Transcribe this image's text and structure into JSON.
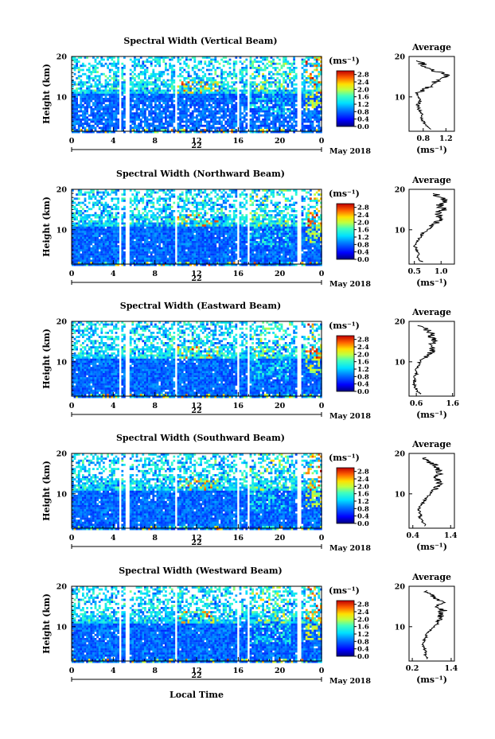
{
  "chart_data": [
    {
      "type": "heatmap",
      "title": "Spectral Width (Vertical Beam)",
      "ylabel": "Height (km)",
      "ylim": [
        1.5,
        20
      ],
      "yticks": [
        10,
        20
      ],
      "xlim": [
        0,
        24
      ],
      "xtick_labels": [
        "0",
        "4",
        "8",
        "12",
        "16",
        "20",
        "0"
      ],
      "date_day": "22",
      "date_month_year": "May 2018",
      "colorbar": {
        "unit": "(ms⁻¹)",
        "ticks": [
          "2.8",
          "2.4",
          "2.0",
          "1.6",
          "1.2",
          "0.8",
          "0.4",
          "0.0"
        ],
        "range": [
          0.0,
          3.0
        ]
      },
      "gaps_hours": [
        [
          4.5,
          4.75
        ],
        [
          5.1,
          5.4
        ],
        [
          9.8,
          10.1
        ],
        [
          15.7,
          16.05
        ],
        [
          16.7,
          16.95
        ],
        [
          21.6,
          21.9
        ]
      ],
      "average": {
        "title": "Average",
        "xlabel": "(ms⁻¹)",
        "xlim": [
          0.55,
          1.35
        ],
        "xticks": [
          "0.8",
          "1.2"
        ],
        "height_km": [
          2,
          3,
          4,
          5,
          6,
          7,
          8,
          9,
          10,
          11,
          12,
          13,
          14,
          15,
          16,
          17,
          18,
          19
        ],
        "values": [
          0.95,
          0.85,
          0.8,
          0.75,
          0.78,
          0.72,
          0.7,
          0.75,
          0.7,
          0.72,
          0.85,
          0.95,
          1.05,
          1.25,
          1.1,
          0.9,
          0.8,
          0.7
        ]
      }
    },
    {
      "type": "heatmap",
      "title": "Spectral Width (Northward Beam)",
      "ylabel": "Height (km)",
      "ylim": [
        1.5,
        20
      ],
      "yticks": [
        10,
        20
      ],
      "xlim": [
        0,
        24
      ],
      "xtick_labels": [
        "0",
        "4",
        "8",
        "12",
        "16",
        "20",
        "0"
      ],
      "date_day": "22",
      "date_month_year": "May 2018",
      "colorbar": {
        "unit": "(ms⁻¹)",
        "ticks": [
          "2.8",
          "2.4",
          "2.0",
          "1.6",
          "1.2",
          "0.8",
          "0.4",
          "0.0"
        ],
        "range": [
          0.0,
          3.0
        ]
      },
      "gaps_hours": [
        [
          4.5,
          4.75
        ],
        [
          5.1,
          5.4
        ],
        [
          9.8,
          10.1
        ],
        [
          15.7,
          16.05
        ],
        [
          16.7,
          16.95
        ],
        [
          21.6,
          21.9
        ]
      ],
      "average": {
        "title": "Average",
        "xlabel": "(ms⁻¹)",
        "xlim": [
          0.4,
          1.25
        ],
        "xticks": [
          "0.5",
          "1.0"
        ],
        "height_km": [
          2,
          3,
          4,
          5,
          6,
          7,
          8,
          9,
          10,
          11,
          12,
          13,
          14,
          15,
          16,
          17,
          18,
          19
        ],
        "values": [
          0.65,
          0.55,
          0.6,
          0.55,
          0.5,
          0.55,
          0.6,
          0.65,
          0.75,
          0.85,
          0.95,
          1.0,
          0.9,
          1.05,
          0.95,
          1.1,
          1.0,
          0.85
        ]
      }
    },
    {
      "type": "heatmap",
      "title": "Spectral Width (Eastward Beam)",
      "ylabel": "Height (km)",
      "ylim": [
        1.5,
        20
      ],
      "yticks": [
        10,
        20
      ],
      "xlim": [
        0,
        24
      ],
      "xtick_labels": [
        "0",
        "4",
        "8",
        "12",
        "16",
        "20",
        "0"
      ],
      "date_day": "22",
      "date_month_year": "May 2018",
      "colorbar": {
        "unit": "(ms⁻¹)",
        "ticks": [
          "2.8",
          "2.4",
          "2.0",
          "1.6",
          "1.2",
          "0.8",
          "0.4",
          "0.0"
        ],
        "range": [
          0.0,
          3.0
        ]
      },
      "gaps_hours": [
        [
          4.5,
          4.75
        ],
        [
          5.1,
          5.4
        ],
        [
          9.8,
          10.1
        ],
        [
          15.7,
          16.05
        ],
        [
          16.7,
          16.95
        ],
        [
          21.6,
          21.9
        ]
      ],
      "average": {
        "title": "Average",
        "xlabel": "(ms⁻¹)",
        "xlim": [
          0.4,
          1.65
        ],
        "xticks": [
          "0.6",
          "1.6"
        ],
        "height_km": [
          2,
          3,
          4,
          5,
          6,
          7,
          8,
          9,
          10,
          11,
          12,
          13,
          14,
          15,
          16,
          17,
          18,
          19
        ],
        "values": [
          0.7,
          0.6,
          0.55,
          0.55,
          0.55,
          0.6,
          0.6,
          0.65,
          0.7,
          0.8,
          0.95,
          1.05,
          1.0,
          1.1,
          1.0,
          1.05,
          0.85,
          0.7
        ]
      }
    },
    {
      "type": "heatmap",
      "title": "Spectral Width (Southward Beam)",
      "ylabel": "Height (km)",
      "ylim": [
        1.5,
        20
      ],
      "yticks": [
        10,
        20
      ],
      "xlim": [
        0,
        24
      ],
      "xtick_labels": [
        "0",
        "4",
        "8",
        "12",
        "16",
        "20",
        "0"
      ],
      "date_day": "22",
      "date_month_year": "May 2018",
      "colorbar": {
        "unit": "(ms⁻¹)",
        "ticks": [
          "2.8",
          "2.4",
          "2.0",
          "1.6",
          "1.2",
          "0.8",
          "0.4",
          "0.0"
        ],
        "range": [
          0.0,
          3.0
        ]
      },
      "gaps_hours": [
        [
          4.5,
          4.75
        ],
        [
          5.1,
          5.4
        ],
        [
          9.8,
          10.1
        ],
        [
          15.7,
          16.05
        ],
        [
          16.7,
          16.95
        ],
        [
          21.6,
          21.9
        ]
      ],
      "average": {
        "title": "Average",
        "xlabel": "(ms⁻¹)",
        "xlim": [
          0.3,
          1.5
        ],
        "xticks": [
          "0.4",
          "1.4"
        ],
        "height_km": [
          2,
          3,
          4,
          5,
          6,
          7,
          8,
          9,
          10,
          11,
          12,
          13,
          14,
          15,
          16,
          17,
          18,
          19
        ],
        "values": [
          0.75,
          0.65,
          0.6,
          0.6,
          0.55,
          0.6,
          0.7,
          0.75,
          0.85,
          0.95,
          1.05,
          1.1,
          1.0,
          1.1,
          1.05,
          1.0,
          0.8,
          0.65
        ]
      }
    },
    {
      "type": "heatmap",
      "title": "Spectral Width (Westward Beam)",
      "ylabel": "Height (km)",
      "ylim": [
        1.5,
        20
      ],
      "yticks": [
        10,
        20
      ],
      "xlim": [
        0,
        24
      ],
      "xtick_labels": [
        "0",
        "4",
        "8",
        "12",
        "16",
        "20",
        "0"
      ],
      "date_day": "22",
      "date_month_year": "May 2018",
      "xlabel": "Local Time",
      "colorbar": {
        "unit": "(ms⁻¹)",
        "ticks": [
          "2.8",
          "2.4",
          "2.0",
          "1.6",
          "1.2",
          "0.8",
          "0.4",
          "0.0"
        ],
        "range": [
          0.0,
          3.0
        ]
      },
      "gaps_hours": [
        [
          4.5,
          4.75
        ],
        [
          5.1,
          5.4
        ],
        [
          9.8,
          10.1
        ],
        [
          15.7,
          16.05
        ],
        [
          16.7,
          16.95
        ],
        [
          21.6,
          21.9
        ]
      ],
      "average": {
        "title": "Average",
        "xlabel": "(ms⁻¹)",
        "xlim": [
          0.1,
          1.5
        ],
        "xticks": [
          "0.2",
          "1.4"
        ],
        "height_km": [
          2,
          3,
          4,
          5,
          6,
          7,
          8,
          9,
          10,
          11,
          12,
          13,
          14,
          15,
          16,
          17,
          18,
          19
        ],
        "values": [
          0.7,
          0.6,
          0.6,
          0.55,
          0.55,
          0.6,
          0.65,
          0.75,
          0.9,
          1.0,
          1.1,
          1.05,
          1.15,
          1.0,
          1.1,
          0.95,
          0.8,
          0.65
        ]
      }
    }
  ]
}
